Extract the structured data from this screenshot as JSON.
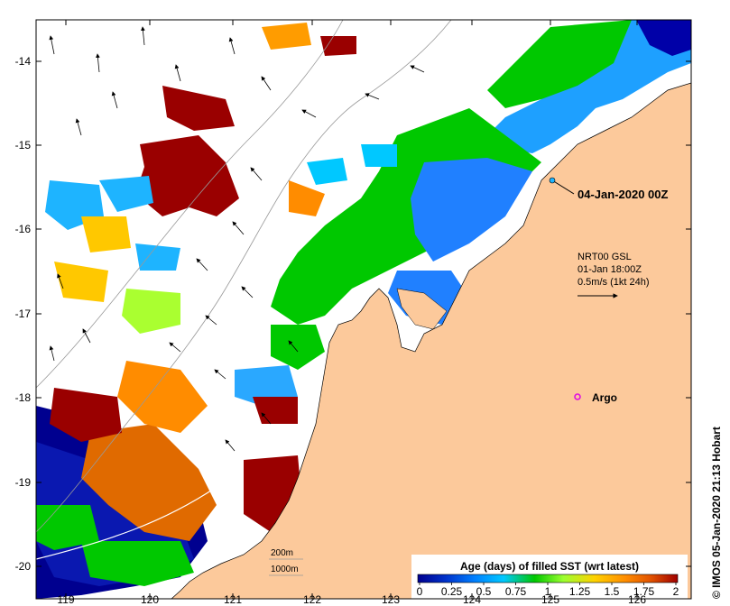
{
  "map": {
    "lat_ticks": [
      "-14",
      "-15",
      "-16",
      "-17",
      "-18",
      "-19",
      "-20"
    ],
    "lon_ticks": [
      "119",
      "120",
      "121",
      "122",
      "123",
      "124",
      "125",
      "126"
    ],
    "date_label": "04-Jan-2020 00Z",
    "currents_block": {
      "line1": "NRT00 GSL",
      "line2": "01-Jan 18:00Z",
      "line3": "0.5m/s (1kt 24h)"
    },
    "argo_label": "Argo",
    "contour_200": "200m",
    "contour_1000": "1000m",
    "credit": "© IMOS 05-Jan-2020 21:13 Hobart"
  },
  "legend": {
    "title": "Age (days) of filled SST (wrt latest)",
    "ticks": [
      "0",
      "0.25",
      "0.5",
      "0.75",
      "1",
      "1.25",
      "1.5",
      "1.75",
      "2"
    ],
    "colors": [
      "#00008f",
      "#0033cc",
      "#0080ff",
      "#00c8ff",
      "#00c800",
      "#9bff30",
      "#ffd200",
      "#ff8c00",
      "#e05000",
      "#a00000"
    ]
  },
  "colors": {
    "land": "#fcc99b",
    "ocean": "#ffffff",
    "argo": "#e010e0"
  }
}
